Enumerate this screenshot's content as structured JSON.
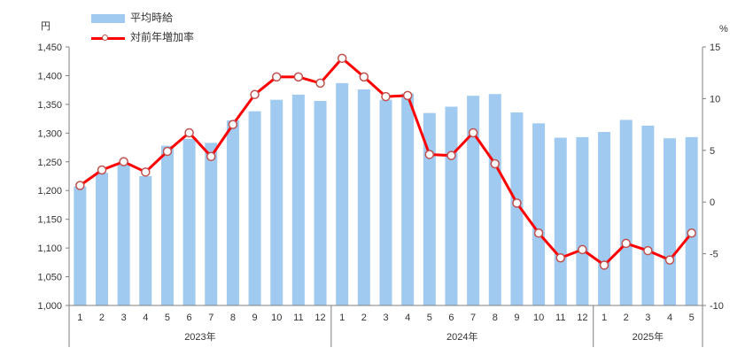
{
  "legend": {
    "series1": "平均時給",
    "series2": "対前年増加率"
  },
  "units": {
    "left": "円",
    "right": "%"
  },
  "colors": {
    "bar": "#A0CAF0",
    "line": "#FF0000",
    "marker_fill": "#FFFFFF",
    "marker_stroke": "#C0504D",
    "axis": "#808080",
    "text": "#333333"
  },
  "chart_data": {
    "type": "combo-bar-line",
    "title": "",
    "grid": false,
    "legend_position": "top-left",
    "month_labels": [
      "1",
      "2",
      "3",
      "4",
      "5",
      "6",
      "7",
      "8",
      "9",
      "10",
      "11",
      "12",
      "1",
      "2",
      "3",
      "4",
      "5",
      "6",
      "7",
      "8",
      "9",
      "10",
      "11",
      "12",
      "1",
      "2",
      "3",
      "4",
      "5"
    ],
    "year_groups": [
      {
        "label": "2023年",
        "count": 12
      },
      {
        "label": "2024年",
        "count": 12
      },
      {
        "label": "2025年",
        "count": 5
      }
    ],
    "series": [
      {
        "name": "平均時給",
        "type": "bar",
        "axis": "left",
        "unit": "円",
        "values": [
          1207,
          1231,
          1246,
          1225,
          1278,
          1290,
          1283,
          1322,
          1338,
          1358,
          1367,
          1356,
          1387,
          1376,
          1358,
          1369,
          1335,
          1346,
          1365,
          1368,
          1336,
          1317,
          1292,
          1293,
          1302,
          1323,
          1313,
          1291,
          1293
        ]
      },
      {
        "name": "対前年増加率",
        "type": "line",
        "axis": "right",
        "unit": "%",
        "values": [
          1.6,
          3.1,
          3.9,
          2.9,
          4.9,
          6.7,
          4.4,
          7.5,
          10.4,
          12.1,
          12.1,
          11.5,
          13.9,
          12.1,
          10.2,
          10.3,
          4.6,
          4.5,
          6.7,
          3.7,
          -0.1,
          -3.0,
          -5.4,
          -4.6,
          -6.1,
          -4.0,
          -4.7,
          -5.6,
          -3.0
        ]
      }
    ],
    "left_axis": {
      "unit": "円",
      "min": 1000,
      "max": 1450,
      "step": 50,
      "tick_labels": [
        "1,000",
        "1,050",
        "1,100",
        "1,150",
        "1,200",
        "1,250",
        "1,300",
        "1,350",
        "1,400",
        "1,450"
      ]
    },
    "right_axis": {
      "unit": "%",
      "min": -10,
      "max": 15,
      "step": 5,
      "tick_labels": [
        "-10",
        "-5",
        "0",
        "5",
        "10",
        "15"
      ]
    }
  }
}
